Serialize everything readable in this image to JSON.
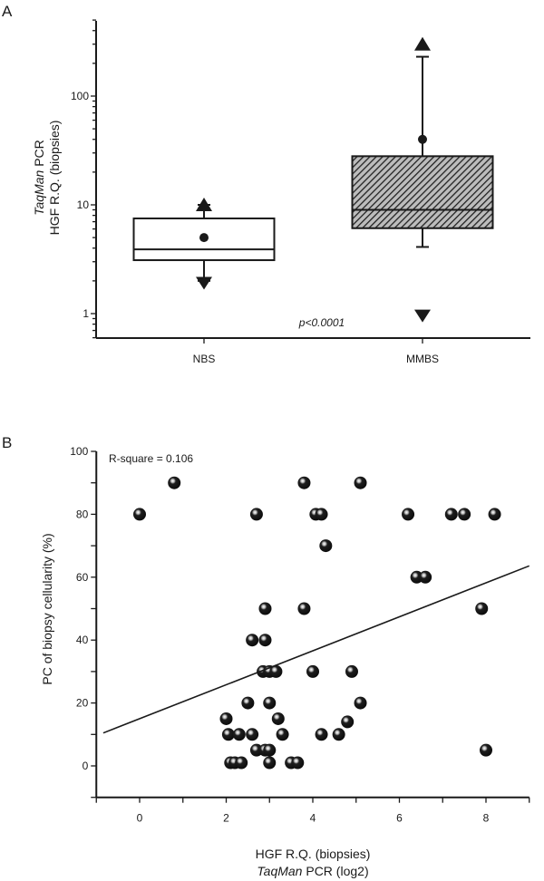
{
  "chart_data": [
    {
      "panel": "A",
      "type": "box",
      "ylabel_italic": "TaqMan",
      "ylabel_rest": " PCR",
      "ylabel_line2": "HGF R.Q. (biopsies)",
      "yscale": "log10",
      "ylim": [
        0.6,
        500
      ],
      "yticks": [
        1,
        10,
        100
      ],
      "ytick_labels": [
        "1",
        "10",
        "100"
      ],
      "categories": [
        "NBS",
        "MMBS"
      ],
      "annotation": "p<0.0001",
      "grid": false,
      "boxes": [
        {
          "name": "NBS",
          "q1": 3.1,
          "median": 3.9,
          "q3": 7.5,
          "whisker_low": 2.0,
          "whisker_high": 10.0,
          "mean": 5.0,
          "min_marker": 1.9,
          "max_marker": 10.0,
          "fill": "white"
        },
        {
          "name": "MMBS",
          "q1": 6.1,
          "median": 9.0,
          "q3": 28.0,
          "whisker_low": 4.1,
          "whisker_high": 230.0,
          "mean": 40.0,
          "min_marker": 0.95,
          "max_marker": 300.0,
          "fill": "hatched"
        }
      ]
    },
    {
      "panel": "B",
      "type": "scatter",
      "title": "",
      "annotation": "R-square = 0.106",
      "xlabel_line1": "HGF R.Q. (biopsies)",
      "xlabel_italic": "TaqMan",
      "xlabel_rest": " PCR (log2)",
      "ylabel": "PC of biopsy cellularity (%)",
      "xlim": [
        -1,
        9
      ],
      "ylim": [
        -10,
        100
      ],
      "xticks": [
        0,
        2,
        4,
        6,
        8
      ],
      "xminor": [
        -1,
        1,
        3,
        5,
        7,
        9
      ],
      "yticks": [
        0,
        20,
        40,
        60,
        80,
        100
      ],
      "yminor": [
        -10,
        10,
        30,
        50,
        70,
        90
      ],
      "grid": false,
      "regression": {
        "slope": 5.4,
        "intercept": 15.0,
        "x_start": -0.84,
        "x_end": 9.0
      },
      "points": [
        {
          "x": 0.0,
          "y": 80
        },
        {
          "x": 0.8,
          "y": 90
        },
        {
          "x": 2.7,
          "y": 80
        },
        {
          "x": 3.8,
          "y": 90
        },
        {
          "x": 5.1,
          "y": 90
        },
        {
          "x": 4.07,
          "y": 80
        },
        {
          "x": 4.2,
          "y": 80
        },
        {
          "x": 4.3,
          "y": 70
        },
        {
          "x": 6.2,
          "y": 80
        },
        {
          "x": 7.2,
          "y": 80
        },
        {
          "x": 7.5,
          "y": 80
        },
        {
          "x": 8.2,
          "y": 80
        },
        {
          "x": 6.4,
          "y": 60
        },
        {
          "x": 6.6,
          "y": 60
        },
        {
          "x": 2.9,
          "y": 50
        },
        {
          "x": 3.8,
          "y": 50
        },
        {
          "x": 7.9,
          "y": 50
        },
        {
          "x": 2.6,
          "y": 40
        },
        {
          "x": 2.9,
          "y": 40
        },
        {
          "x": 2.85,
          "y": 30
        },
        {
          "x": 3.0,
          "y": 30
        },
        {
          "x": 3.15,
          "y": 30
        },
        {
          "x": 4.0,
          "y": 30
        },
        {
          "x": 4.9,
          "y": 30
        },
        {
          "x": 2.5,
          "y": 20
        },
        {
          "x": 3.0,
          "y": 20
        },
        {
          "x": 5.1,
          "y": 20
        },
        {
          "x": 2.0,
          "y": 15
        },
        {
          "x": 3.2,
          "y": 15
        },
        {
          "x": 4.8,
          "y": 14
        },
        {
          "x": 2.05,
          "y": 10
        },
        {
          "x": 2.3,
          "y": 10
        },
        {
          "x": 2.6,
          "y": 10
        },
        {
          "x": 3.3,
          "y": 10
        },
        {
          "x": 4.2,
          "y": 10
        },
        {
          "x": 4.6,
          "y": 10
        },
        {
          "x": 2.7,
          "y": 5
        },
        {
          "x": 2.9,
          "y": 5
        },
        {
          "x": 3.0,
          "y": 5
        },
        {
          "x": 8.0,
          "y": 5
        },
        {
          "x": 2.1,
          "y": 1
        },
        {
          "x": 2.2,
          "y": 1
        },
        {
          "x": 2.35,
          "y": 1
        },
        {
          "x": 3.0,
          "y": 1
        },
        {
          "x": 3.5,
          "y": 1
        },
        {
          "x": 3.65,
          "y": 1
        }
      ]
    }
  ]
}
